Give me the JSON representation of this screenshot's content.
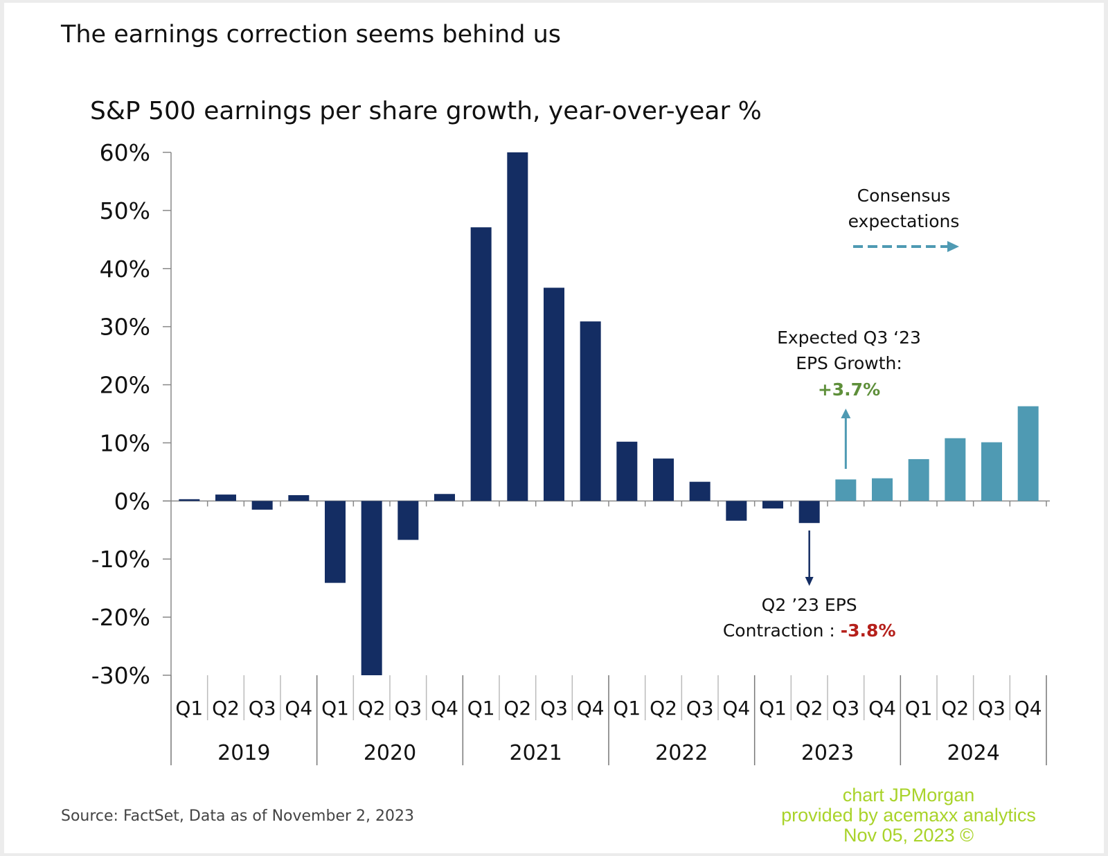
{
  "page_title": "The earnings correction seems behind us",
  "source": "Source: FactSet, Data as of November 2, 2023",
  "watermark": [
    "chart JPMorgan",
    "provided by acemaxx analytics",
    "Nov 05, 2023 ©"
  ],
  "chart_data": {
    "type": "bar",
    "title": "S&P 500 earnings per share growth, year-over-year %",
    "xlabel": "",
    "ylabel": "",
    "ylim": [
      -30,
      60
    ],
    "yticks": [
      60,
      50,
      40,
      30,
      20,
      10,
      0,
      -10,
      -20,
      -30
    ],
    "ytick_labels": [
      "60%",
      "50%",
      "40%",
      "30%",
      "20%",
      "10%",
      "0%",
      "-10%",
      "-20%",
      "-30%"
    ],
    "grid": false,
    "years": [
      "2019",
      "2020",
      "2021",
      "2022",
      "2023",
      "2024"
    ],
    "quarters": [
      "Q1",
      "Q2",
      "Q3",
      "Q4",
      "Q1",
      "Q2",
      "Q3",
      "Q4",
      "Q1",
      "Q2",
      "Q3",
      "Q4",
      "Q1",
      "Q2",
      "Q3",
      "Q4",
      "Q1",
      "Q2",
      "Q3",
      "Q4",
      "Q1",
      "Q2",
      "Q3",
      "Q4"
    ],
    "values": [
      0.3,
      1.1,
      -1.5,
      1.0,
      -14.1,
      -30.0,
      -6.7,
      1.2,
      47.1,
      60.0,
      36.7,
      30.9,
      10.2,
      7.3,
      3.3,
      -3.4,
      -1.3,
      -3.8,
      3.7,
      3.9,
      7.2,
      10.8,
      10.1,
      16.3
    ],
    "estimate": [
      false,
      false,
      false,
      false,
      false,
      false,
      false,
      false,
      false,
      false,
      false,
      false,
      false,
      false,
      false,
      false,
      false,
      false,
      true,
      true,
      true,
      true,
      true,
      true
    ],
    "colors": {
      "actual": "#142d63",
      "consensus": "#4f9ab3",
      "positive_note": "#5e8f3a",
      "negative_note": "#b5201b"
    },
    "annotations": {
      "consensus": [
        "Consensus",
        "expectations"
      ],
      "expected": [
        "Expected Q3 ‘23",
        "EPS Growth:"
      ],
      "expected_value": "+3.7%",
      "contraction": [
        "Q2 ’23 EPS",
        "Contraction : "
      ],
      "contraction_value": "-3.8%"
    }
  }
}
